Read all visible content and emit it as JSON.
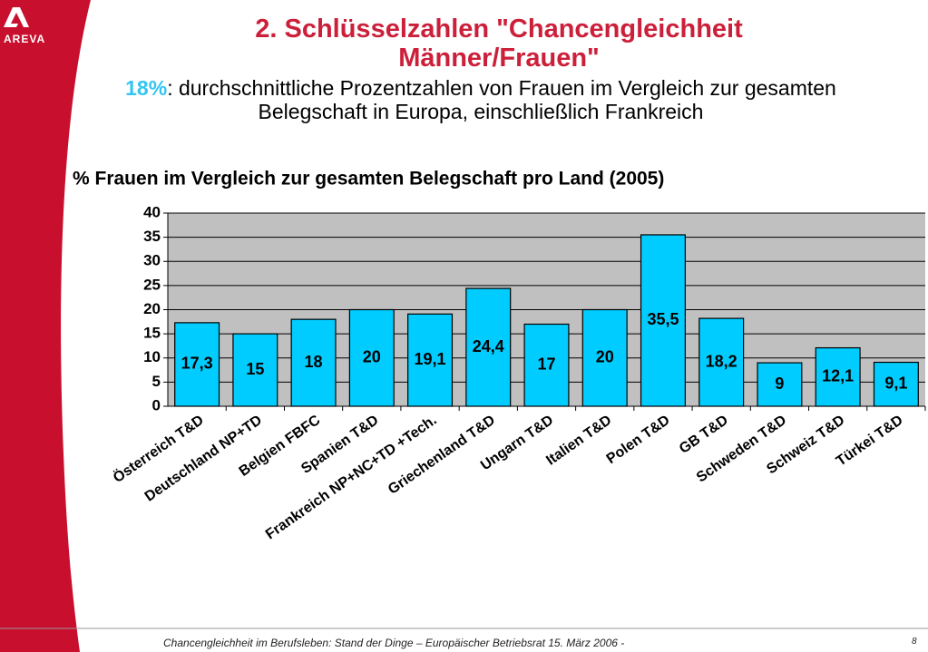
{
  "slide": {
    "title_lines": [
      "2.  Schlüsselzahlen \"Chancengleichheit",
      "Männer/Frauen\""
    ],
    "highlight": "18%",
    "subtitle": ": durchschnittliche Prozentzahlen von Frauen im Vergleich zur gesamten Belegschaft in Europa, einschließlich Frankreich",
    "logo": "AREVA",
    "footer": "Chancengleichheit im Berufsleben: Stand der Dinge – Europäischer Betriebsrat 15. März 2006 -",
    "page_number": "8"
  },
  "chart_data": {
    "type": "bar",
    "title": "% Frauen im Vergleich zur gesamten Belegschaft pro Land (2005)",
    "categories": [
      "Österreich T&D",
      "Deutschland NP+TD",
      "Belgien FBFC",
      "Spanien T&D",
      "Frankreich NP+NC+TD +Tech.",
      "Griechenland T&D",
      "Ungarn T&D",
      "Italien T&D",
      "Polen T&D",
      "GB T&D",
      "Schweden T&D",
      "Schweiz T&D",
      "Türkei T&D"
    ],
    "values": [
      17.3,
      15,
      18,
      20,
      19.1,
      24.4,
      17,
      20,
      35.5,
      18.2,
      9,
      12.1,
      9.1
    ],
    "value_labels": [
      "17,3",
      "15",
      "18",
      "20",
      "19,1",
      "24,4",
      "17",
      "20",
      "35,5",
      "18,2",
      "9",
      "12,1",
      "9,1"
    ],
    "color": "#00ccff",
    "ylim": [
      0,
      40
    ],
    "yticks": [
      0,
      5,
      10,
      15,
      20,
      25,
      30,
      35,
      40
    ],
    "grid": true
  }
}
